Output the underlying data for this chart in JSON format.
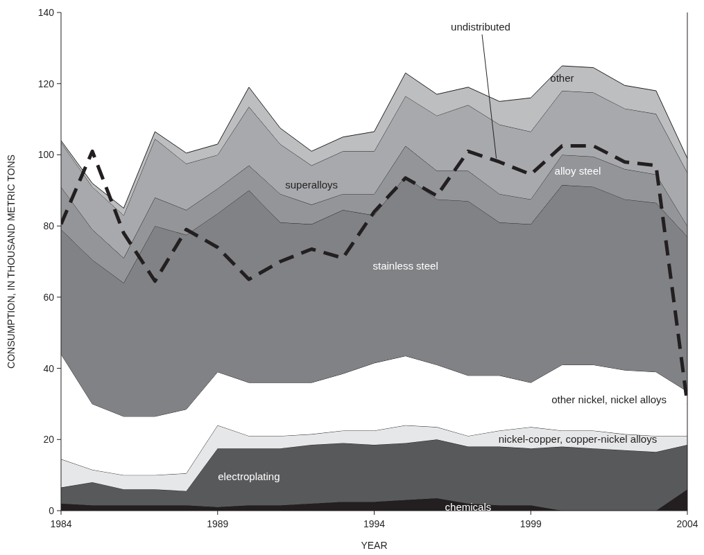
{
  "chart_data": {
    "type": "area",
    "stacked": true,
    "xlabel": "YEAR",
    "ylabel": "CONSUMPTION, IN THOUSAND METRIC TONS",
    "x": [
      1984,
      1985,
      1986,
      1987,
      1988,
      1989,
      1990,
      1991,
      1992,
      1993,
      1994,
      1995,
      1996,
      1997,
      1998,
      1999,
      2000,
      2001,
      2002,
      2003,
      2004
    ],
    "xlim": [
      1984,
      2004
    ],
    "xticks": [
      1984,
      1989,
      1994,
      1999,
      2004
    ],
    "ylim": [
      0,
      140
    ],
    "yticks": [
      0,
      20,
      40,
      60,
      80,
      100,
      120,
      140
    ],
    "series": [
      {
        "name": "chemicals",
        "color": "#231f20",
        "values": [
          2,
          1.5,
          1.5,
          1.5,
          1.5,
          1,
          1.5,
          1.5,
          2,
          2.5,
          2.5,
          3,
          3.5,
          2,
          1.5,
          1.5,
          0,
          0,
          0,
          0,
          6
        ]
      },
      {
        "name": "electroplating",
        "color": "#58595b",
        "values": [
          4.5,
          6.5,
          4.5,
          4.5,
          4,
          16.5,
          16,
          16,
          16.5,
          16.5,
          16,
          16,
          16.5,
          16,
          16.5,
          16,
          18,
          17.5,
          17,
          16.5,
          12.5
        ]
      },
      {
        "name": "nickel-copper, copper-nickel alloys",
        "color": "#e6e7e8",
        "values": [
          8,
          3.5,
          4,
          4,
          5,
          6.5,
          3.5,
          3.5,
          3,
          3.5,
          4,
          5,
          3.5,
          3,
          4.5,
          6,
          4.5,
          5,
          4.5,
          4.5,
          2.5
        ]
      },
      {
        "name": "other nickel, nickel alloys",
        "color": "#ffffff",
        "values": [
          29.5,
          18.5,
          16.5,
          16.5,
          18,
          15,
          15,
          15,
          14.5,
          16,
          19,
          19.5,
          17.5,
          17,
          15.5,
          12.5,
          18.5,
          18.5,
          18,
          18,
          12.5
        ]
      },
      {
        "name": "stainless steel",
        "color": "#808285",
        "values": [
          35,
          40.5,
          37.5,
          53.5,
          49,
          44.5,
          54,
          45,
          44.5,
          46,
          41.5,
          50.5,
          46.5,
          49,
          43,
          44.5,
          50.5,
          50,
          48,
          47.5,
          43.5
        ]
      },
      {
        "name": "alloy steel",
        "color": "#939598",
        "values": [
          12,
          8.5,
          7,
          8,
          7,
          7,
          7,
          8,
          5.5,
          4.5,
          6,
          8.5,
          8,
          8.5,
          8,
          7,
          8.5,
          8.5,
          8.5,
          8,
          3
        ]
      },
      {
        "name": "superalloys",
        "color": "#a7a9ac",
        "values": [
          12.5,
          12,
          12,
          16.5,
          13,
          9.5,
          16.5,
          14,
          11,
          12,
          12,
          14,
          15.5,
          18.5,
          19.5,
          19,
          18,
          18,
          17,
          17,
          15
        ]
      },
      {
        "name": "other",
        "color": "#bcbec0",
        "values": [
          0.5,
          1,
          2,
          2,
          3,
          3,
          5.5,
          4.5,
          4,
          4,
          5.5,
          6.5,
          6,
          5,
          6.5,
          9.5,
          7,
          7,
          6.5,
          6.5,
          4
        ]
      },
      {
        "name": "undistributed",
        "type": "line",
        "line_style": "dashed",
        "color": "#231f20",
        "values": [
          80.5,
          101,
          78,
          64.5,
          79,
          74,
          65,
          70,
          73.5,
          71,
          84,
          93.5,
          88.5,
          101,
          98,
          94.5,
          102.5,
          102.5,
          98,
          97,
          30
        ]
      }
    ]
  }
}
